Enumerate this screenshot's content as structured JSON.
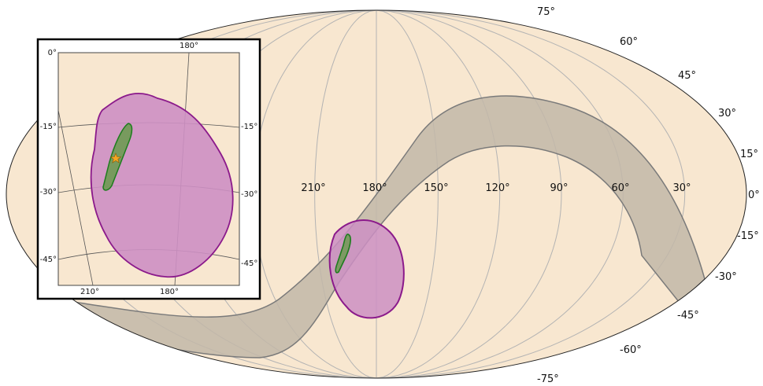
{
  "chart_data": {
    "type": "sky-map",
    "projection": "mollweide",
    "background_color": "#f8e7d0",
    "grid": true,
    "ra_tick_labels": [
      "210°",
      "180°",
      "150°",
      "120°",
      "90°",
      "60°",
      "30°"
    ],
    "ra_tick_values": [
      210,
      180,
      150,
      120,
      90,
      60,
      30
    ],
    "dec_tick_labels": [
      "75°",
      "60°",
      "45°",
      "30°",
      "15°",
      "0°",
      "-15°",
      "-30°",
      "-45°",
      "-60°",
      "-75°"
    ],
    "dec_tick_values": [
      75,
      60,
      45,
      30,
      15,
      0,
      -15,
      -30,
      -45,
      -60,
      -75
    ],
    "galactic_plane": {
      "color": "#c2b7a8",
      "edge_color": "#7a7a7a"
    },
    "regions": [
      {
        "name": "",
        "color": "#cd8fc3",
        "edge_color": "#8b1a8b",
        "kind": "wide-localization"
      },
      {
        "name": "",
        "color": "#6e9a52",
        "edge_color": "#1e7d1e",
        "kind": "narrow-localization"
      }
    ],
    "inset": {
      "x_tick_labels": [
        "180°",
        "210°",
        "180°"
      ],
      "y_tick_labels_left": [
        "0°",
        "-15°",
        "-30°",
        "-45°"
      ],
      "y_tick_labels_right": [
        "-15°",
        "-30°",
        "-45°"
      ],
      "marker": {
        "symbol": "star",
        "color": "#f5a623"
      }
    }
  }
}
